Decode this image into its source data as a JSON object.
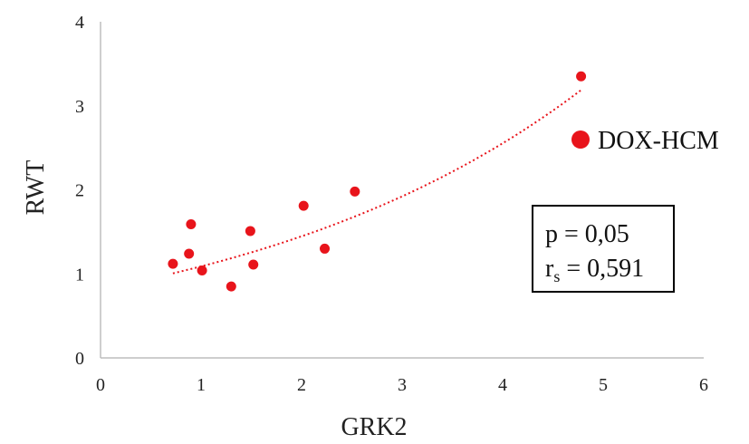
{
  "chart_data": {
    "type": "scatter",
    "xlabel": "GRK2",
    "ylabel": "RWT",
    "xlim": [
      0,
      6
    ],
    "ylim": [
      0,
      4
    ],
    "x_ticks": [
      "0",
      "1",
      "2",
      "3",
      "4",
      "5",
      "6"
    ],
    "y_ticks": [
      "0",
      "1",
      "2",
      "3",
      "4"
    ],
    "grid": false,
    "legend_position": "right",
    "series": [
      {
        "name": "DOX-HCM",
        "color": "#e8141b",
        "points": [
          {
            "x": 0.72,
            "y": 1.12
          },
          {
            "x": 0.88,
            "y": 1.24
          },
          {
            "x": 0.9,
            "y": 1.59
          },
          {
            "x": 1.01,
            "y": 1.04
          },
          {
            "x": 1.3,
            "y": 0.85
          },
          {
            "x": 1.49,
            "y": 1.51
          },
          {
            "x": 1.52,
            "y": 1.11
          },
          {
            "x": 2.02,
            "y": 1.81
          },
          {
            "x": 2.23,
            "y": 1.3
          },
          {
            "x": 2.53,
            "y": 1.98
          },
          {
            "x": 4.78,
            "y": 3.35
          }
        ]
      }
    ],
    "trendline": {
      "type": "exponential",
      "style": "dotted",
      "color": "#e8141b",
      "a": 0.82,
      "b": 0.284,
      "x_range": [
        0.72,
        4.78
      ]
    },
    "annotation": {
      "p_label": "p = 0,05",
      "r_label": "r",
      "r_sub": "s",
      "r_value": " = 0,591"
    }
  }
}
